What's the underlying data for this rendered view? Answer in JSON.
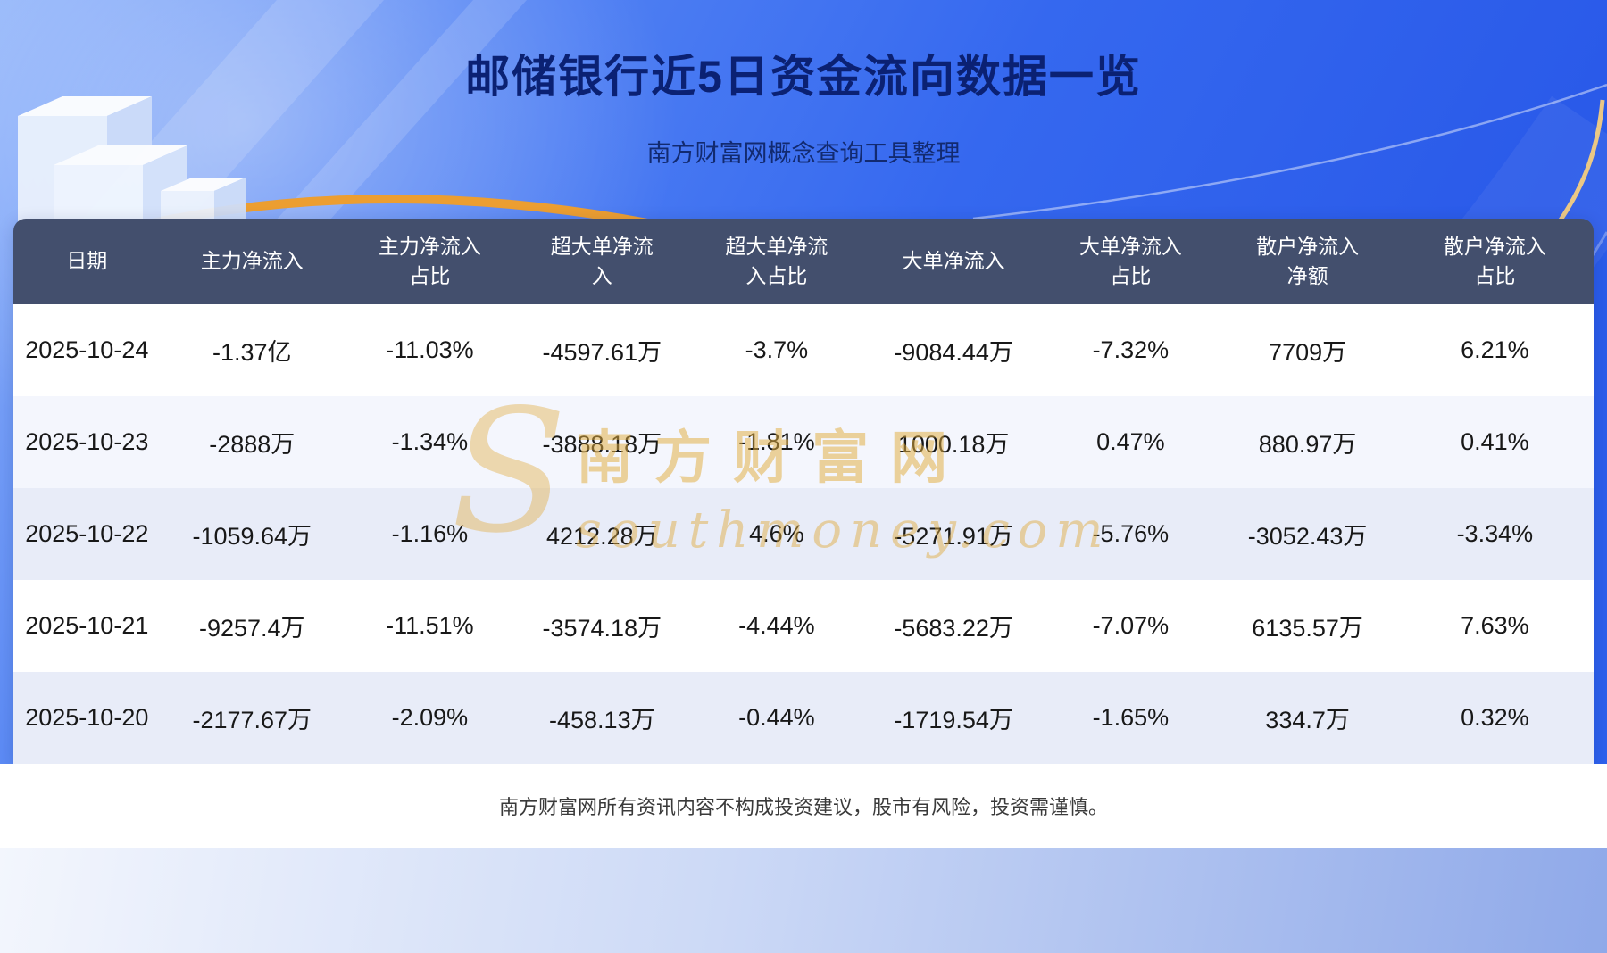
{
  "page": {
    "footer_disclaimer": "南方财富网所有资讯内容不构成投资建议，股市有风险，投资需谨慎。"
  },
  "watermark": {
    "initial": "S",
    "site_name_cn": "南方财富网",
    "site_name_en": "southmoney.com"
  },
  "chart_data": {
    "type": "table",
    "title": "邮储银行近5日资金流向数据一览",
    "subtitle": "南方财富网概念查询工具整理",
    "columns": [
      "日期",
      "主力净流入",
      "主力净流入占比",
      "超大单净流入",
      "超大单净流入占比",
      "大单净流入",
      "大单净流入占比",
      "散户净流入净额",
      "散户净流入占比"
    ],
    "rows": [
      [
        "2025-10-24",
        "-1.37亿",
        "-11.03%",
        "-4597.61万",
        "-3.7%",
        "-9084.44万",
        "-7.32%",
        "7709万",
        "6.21%"
      ],
      [
        "2025-10-23",
        "-2888万",
        "-1.34%",
        "-3888.18万",
        "-1.81%",
        "1000.18万",
        "0.47%",
        "880.97万",
        "0.41%"
      ],
      [
        "2025-10-22",
        "-1059.64万",
        "-1.16%",
        "4212.28万",
        "4.6%",
        "-5271.91万",
        "-5.76%",
        "-3052.43万",
        "-3.34%"
      ],
      [
        "2025-10-21",
        "-9257.4万",
        "-11.51%",
        "-3574.18万",
        "-4.44%",
        "-5683.22万",
        "-7.07%",
        "6135.57万",
        "7.63%"
      ],
      [
        "2025-10-20",
        "-2177.67万",
        "-2.09%",
        "-458.13万",
        "-0.44%",
        "-1719.54万",
        "-1.65%",
        "334.7万",
        "0.32%"
      ]
    ]
  },
  "theme": {
    "background_blue": "#3166ee",
    "title_color": "#0b2173",
    "table_header_bg": "#434f6d",
    "row_stripe_bg": "#e8ecf8",
    "accent_gold": "#ec9e31",
    "watermark_gold": "#e0ac40",
    "footer_bg": "#ffffff"
  }
}
